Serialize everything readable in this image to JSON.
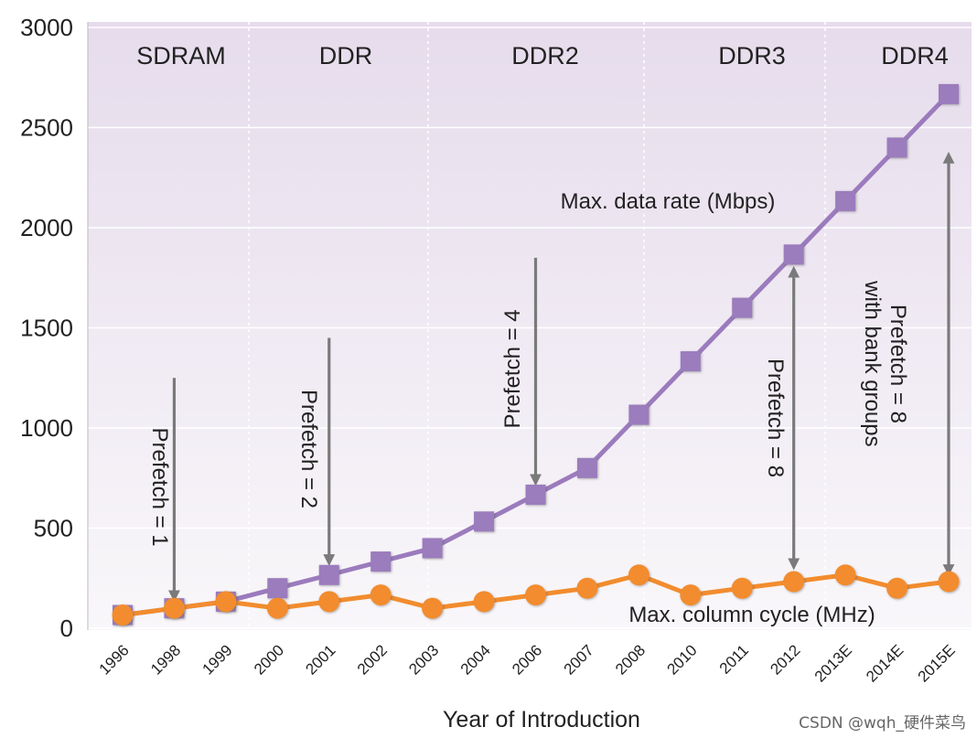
{
  "chart_data": {
    "type": "line",
    "title": "",
    "xlabel": "Year of Introduction",
    "ylabel": "",
    "ylim": [
      0,
      3000
    ],
    "yticks": [
      0,
      500,
      1000,
      1500,
      2000,
      2500,
      3000
    ],
    "categories": [
      "1996",
      "1998",
      "1999",
      "2000",
      "2001",
      "2002",
      "2003",
      "2004",
      "2006",
      "2007",
      "2008",
      "2010",
      "2011",
      "2012",
      "2013E",
      "2014E",
      "2015E"
    ],
    "series": [
      {
        "name": "Max. data rate (Mbps)",
        "marker": "square",
        "color": "#9b7bbd",
        "values": [
          66,
          100,
          133,
          200,
          266,
          333,
          400,
          533,
          667,
          800,
          1066,
          1333,
          1600,
          1866,
          2133,
          2400,
          2667
        ]
      },
      {
        "name": "Max. column cycle (MHz)",
        "marker": "circle",
        "color": "#f28c2e",
        "values": [
          66,
          100,
          133,
          100,
          133,
          166,
          100,
          133,
          166,
          200,
          266,
          166,
          200,
          233,
          266,
          200,
          233
        ]
      }
    ],
    "generations": [
      {
        "label": "SDRAM"
      },
      {
        "label": "DDR"
      },
      {
        "label": "DDR2"
      },
      {
        "label": "DDR3"
      },
      {
        "label": "DDR4"
      }
    ],
    "prefetch_annotations": [
      {
        "text": "Prefetch = 1",
        "lines": [
          "Prefetch = 1"
        ],
        "category": "1998",
        "from": 1250,
        "to": 160,
        "direction": "down",
        "text_rotation": 90
      },
      {
        "text": "Prefetch = 2",
        "lines": [
          "Prefetch = 2"
        ],
        "category": "2001",
        "from": 1450,
        "to": 340,
        "direction": "down",
        "text_rotation": 90
      },
      {
        "text": "Prefetch = 4",
        "lines": [
          "Prefetch = 4"
        ],
        "category": "2006",
        "from": 1850,
        "to": 740,
        "direction": "down",
        "text_rotation": -90
      },
      {
        "text": "Prefetch = 8",
        "lines": [
          "Prefetch = 8"
        ],
        "category": "2012",
        "from": 1780,
        "to": 320,
        "direction": "both",
        "text_rotation": 90
      },
      {
        "text": "Prefetch = 8 with bank groups",
        "lines": [
          "Prefetch = 8",
          "with bank groups"
        ],
        "category": "2015E",
        "from": 2350,
        "to": 290,
        "direction": "both",
        "text_rotation": 90
      }
    ],
    "series_labels": [
      {
        "text": "Max. data rate (Mbps)"
      },
      {
        "text": "Max. column cycle (MHz)"
      }
    ],
    "background": {
      "top": "#e6dcec",
      "bottom": "#f9f7fa"
    },
    "arrow_color": "#7a7a7a"
  },
  "watermark": "CSDN @wqh_硬件菜鸟"
}
